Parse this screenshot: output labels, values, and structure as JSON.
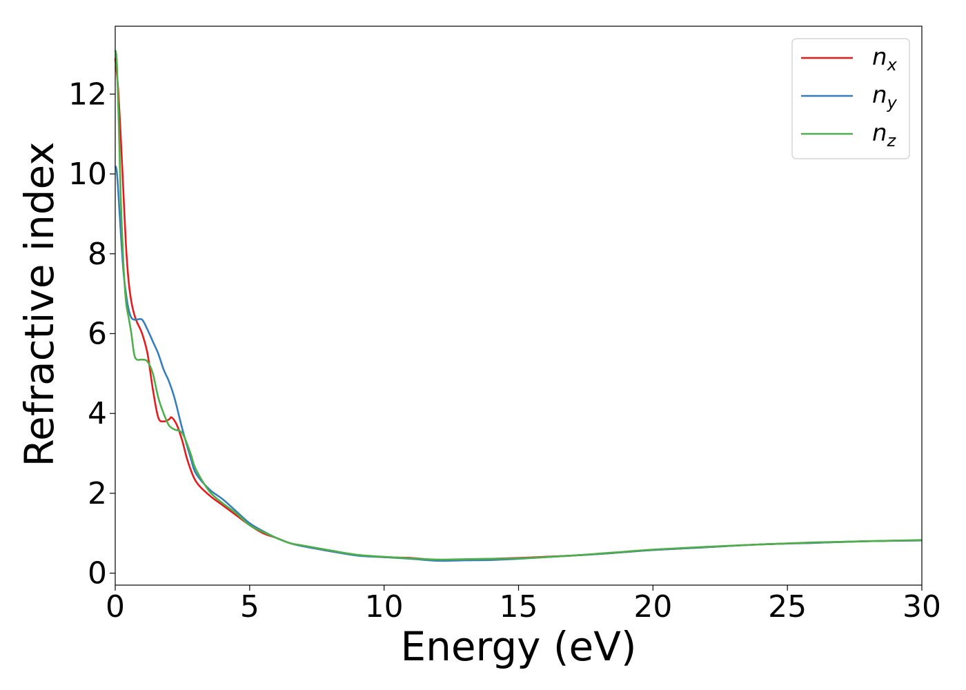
{
  "chart_data": {
    "type": "line",
    "title": "",
    "xlabel": "Energy (eV)",
    "ylabel": "Refractive index",
    "xlim": [
      0,
      30
    ],
    "ylim": [
      -0.3,
      13.7
    ],
    "xticks": [
      0,
      5,
      10,
      15,
      20,
      25,
      30
    ],
    "yticks": [
      0,
      2,
      4,
      6,
      8,
      10,
      12
    ],
    "xtick_labels": [
      "0",
      "5",
      "10",
      "15",
      "20",
      "25",
      "30"
    ],
    "ytick_labels": [
      "0",
      "2",
      "4",
      "6",
      "8",
      "10",
      "12"
    ],
    "grid": false,
    "legend_position": "top-right",
    "series": [
      {
        "name": "n",
        "subscript": "x",
        "color": "#e41a1c",
        "x": [
          0,
          0.1,
          0.2,
          0.3,
          0.4,
          0.5,
          0.6,
          0.7,
          0.8,
          1.0,
          1.2,
          1.4,
          1.6,
          1.8,
          2.0,
          2.1,
          2.3,
          2.5,
          2.7,
          3.0,
          3.5,
          4.0,
          4.5,
          5.0,
          5.5,
          6.0,
          6.5,
          7,
          8,
          9,
          10,
          11,
          12,
          13,
          14,
          15,
          16,
          17,
          18,
          19,
          20,
          22,
          24,
          26,
          28,
          30
        ],
        "y": [
          12.9,
          12.2,
          11.0,
          9.6,
          8.2,
          7.3,
          6.8,
          6.5,
          6.3,
          6.0,
          5.5,
          4.6,
          3.9,
          3.8,
          3.85,
          3.9,
          3.7,
          3.3,
          2.8,
          2.3,
          1.95,
          1.7,
          1.45,
          1.2,
          1.0,
          0.88,
          0.75,
          0.68,
          0.55,
          0.45,
          0.4,
          0.38,
          0.33,
          0.34,
          0.36,
          0.38,
          0.41,
          0.44,
          0.48,
          0.53,
          0.58,
          0.65,
          0.72,
          0.76,
          0.8,
          0.82
        ]
      },
      {
        "name": "n",
        "subscript": "y",
        "color": "#377eb8",
        "x": [
          0,
          0.05,
          0.1,
          0.2,
          0.3,
          0.4,
          0.5,
          0.6,
          0.7,
          0.8,
          1.0,
          1.2,
          1.4,
          1.6,
          1.8,
          2.0,
          2.2,
          2.5,
          2.8,
          3.0,
          3.5,
          4.0,
          4.5,
          5.0,
          5.5,
          6.0,
          6.5,
          7,
          8,
          9,
          10,
          11,
          12,
          13,
          14,
          15,
          16,
          17,
          18,
          19,
          20,
          22,
          24,
          26,
          28,
          30
        ],
        "y": [
          10.2,
          10.1,
          9.7,
          8.6,
          7.6,
          7.0,
          6.6,
          6.4,
          6.35,
          6.35,
          6.35,
          6.1,
          5.8,
          5.5,
          5.1,
          4.8,
          4.4,
          3.6,
          2.9,
          2.5,
          2.1,
          1.85,
          1.55,
          1.25,
          1.05,
          0.88,
          0.75,
          0.67,
          0.55,
          0.44,
          0.4,
          0.36,
          0.31,
          0.32,
          0.33,
          0.36,
          0.4,
          0.44,
          0.48,
          0.53,
          0.58,
          0.65,
          0.72,
          0.76,
          0.8,
          0.82
        ]
      },
      {
        "name": "n",
        "subscript": "z",
        "color": "#4daf4a",
        "x": [
          0,
          0.05,
          0.1,
          0.15,
          0.2,
          0.3,
          0.4,
          0.5,
          0.6,
          0.7,
          0.8,
          1.0,
          1.2,
          1.4,
          1.6,
          1.8,
          2.0,
          2.2,
          2.5,
          2.8,
          3.0,
          3.5,
          4.0,
          4.5,
          5.0,
          5.5,
          6.0,
          6.5,
          7,
          8,
          9,
          10,
          11,
          12,
          13,
          14,
          15,
          16,
          17,
          18,
          19,
          20,
          22,
          24,
          26,
          28,
          30
        ],
        "y": [
          13.1,
          12.9,
          12.0,
          10.8,
          9.5,
          7.8,
          6.8,
          6.4,
          6.0,
          5.5,
          5.35,
          5.35,
          5.3,
          5.0,
          4.4,
          4.0,
          3.7,
          3.6,
          3.5,
          3.0,
          2.6,
          2.05,
          1.75,
          1.5,
          1.2,
          1.03,
          0.88,
          0.75,
          0.69,
          0.57,
          0.46,
          0.41,
          0.37,
          0.34,
          0.35,
          0.36,
          0.37,
          0.4,
          0.44,
          0.49,
          0.54,
          0.59,
          0.66,
          0.72,
          0.77,
          0.8,
          0.83
        ]
      }
    ]
  }
}
